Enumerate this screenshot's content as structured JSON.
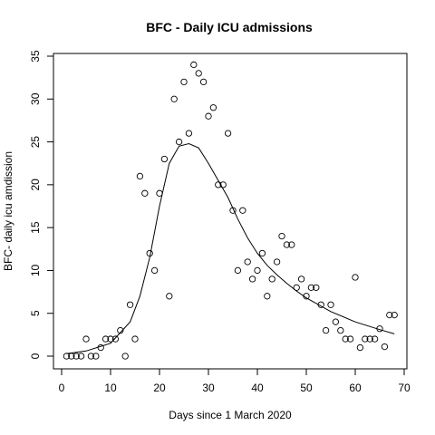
{
  "chart_data": {
    "type": "scatter",
    "title": "BFC - Daily ICU admissions",
    "xlabel": "Days since 1 March 2020",
    "ylabel": "BFC- daily icu amdission",
    "xlim": [
      0,
      70
    ],
    "ylim": [
      0,
      35
    ],
    "xticks": [
      0,
      10,
      20,
      30,
      40,
      50,
      60,
      70
    ],
    "yticks": [
      0,
      5,
      10,
      15,
      20,
      25,
      30,
      35
    ],
    "grid": false,
    "points": [
      [
        1,
        0
      ],
      [
        2,
        0
      ],
      [
        3,
        0
      ],
      [
        4,
        0
      ],
      [
        5,
        2
      ],
      [
        6,
        0
      ],
      [
        7,
        0
      ],
      [
        8,
        1
      ],
      [
        9,
        2
      ],
      [
        10,
        2
      ],
      [
        11,
        2
      ],
      [
        12,
        3
      ],
      [
        13,
        0
      ],
      [
        14,
        6
      ],
      [
        15,
        2
      ],
      [
        16,
        21
      ],
      [
        17,
        19
      ],
      [
        18,
        12
      ],
      [
        19,
        10
      ],
      [
        20,
        19
      ],
      [
        21,
        23
      ],
      [
        22,
        7
      ],
      [
        23,
        30
      ],
      [
        24,
        25
      ],
      [
        25,
        32
      ],
      [
        26,
        26
      ],
      [
        27,
        34
      ],
      [
        28,
        33
      ],
      [
        29,
        32
      ],
      [
        30,
        28
      ],
      [
        31,
        29
      ],
      [
        32,
        20
      ],
      [
        33,
        20
      ],
      [
        34,
        26
      ],
      [
        35,
        17
      ],
      [
        36,
        10
      ],
      [
        37,
        17
      ],
      [
        38,
        11
      ],
      [
        39,
        9
      ],
      [
        40,
        10
      ],
      [
        41,
        12
      ],
      [
        42,
        7
      ],
      [
        43,
        9
      ],
      [
        44,
        11
      ],
      [
        45,
        14
      ],
      [
        46,
        13
      ],
      [
        47,
        13
      ],
      [
        48,
        8
      ],
      [
        49,
        9
      ],
      [
        50,
        7
      ],
      [
        51,
        8
      ],
      [
        52,
        8
      ],
      [
        53,
        6
      ],
      [
        54,
        3
      ],
      [
        55,
        6
      ],
      [
        56,
        4
      ],
      [
        57,
        3
      ],
      [
        58,
        2
      ],
      [
        59,
        2
      ],
      [
        60,
        9.2
      ],
      [
        61,
        1
      ],
      [
        62,
        2
      ],
      [
        63,
        2
      ],
      [
        64,
        2
      ],
      [
        65,
        3.2
      ],
      [
        66,
        1.1
      ],
      [
        67,
        4.8
      ],
      [
        68,
        4.8
      ]
    ],
    "fit_curve": [
      [
        1,
        0.3
      ],
      [
        5,
        0.6
      ],
      [
        10,
        1.5
      ],
      [
        14,
        4.0
      ],
      [
        16,
        7.0
      ],
      [
        18,
        11.5
      ],
      [
        20,
        17.5
      ],
      [
        22,
        22.5
      ],
      [
        24,
        24.5
      ],
      [
        26,
        24.8
      ],
      [
        28,
        24.3
      ],
      [
        30,
        22.5
      ],
      [
        32,
        20.5
      ],
      [
        34,
        18.5
      ],
      [
        36,
        16.0
      ],
      [
        38,
        13.8
      ],
      [
        40,
        12.0
      ],
      [
        42,
        10.6
      ],
      [
        44,
        9.5
      ],
      [
        46,
        8.5
      ],
      [
        48,
        7.6
      ],
      [
        50,
        6.8
      ],
      [
        55,
        5.2
      ],
      [
        60,
        4.0
      ],
      [
        65,
        3.1
      ],
      [
        68,
        2.6
      ]
    ]
  }
}
